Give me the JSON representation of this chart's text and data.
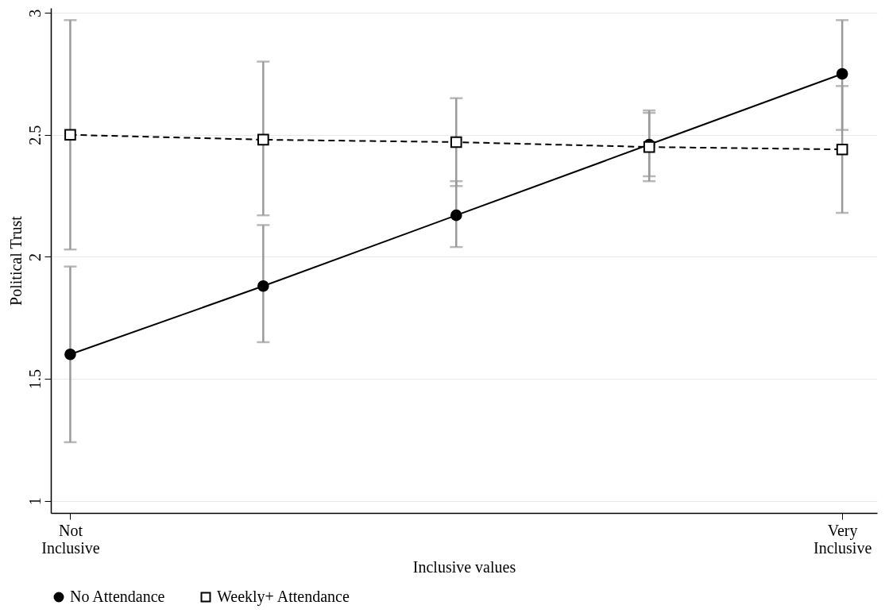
{
  "chart_data": {
    "type": "line",
    "xlabel": "Inclusive values",
    "ylabel": "Political Trust",
    "categories": [
      "Not Inclusive",
      null,
      null,
      null,
      "Very Inclusive"
    ],
    "ylim": [
      0.95,
      3.02
    ],
    "yticks": [
      {
        "value": 1,
        "label": "1"
      },
      1.5,
      {
        "value": 2,
        "label": "2"
      },
      2.5,
      {
        "value": 3,
        "label": "3"
      }
    ],
    "grid": "y",
    "legend": "bottom",
    "series": [
      {
        "name": "No Attendance",
        "color": "#000000",
        "marker": "circle",
        "line_style": "solid",
        "values": [
          1.6,
          1.88,
          2.17,
          2.46,
          2.75
        ],
        "errors": [
          [
            1.24,
            1.96
          ],
          [
            1.65,
            2.13
          ],
          [
            2.04,
            2.31
          ],
          [
            2.31,
            2.6
          ],
          [
            2.52,
            2.97
          ]
        ]
      },
      {
        "name": "Weekly+ Attendance",
        "color": "#000000",
        "marker": "square",
        "line_style": "dashed",
        "values": [
          2.5,
          2.48,
          2.47,
          2.45,
          2.44
        ],
        "errors": [
          [
            2.03,
            2.97
          ],
          [
            2.17,
            2.8
          ],
          [
            2.29,
            2.65
          ],
          [
            2.33,
            2.59
          ],
          [
            2.18,
            2.7
          ]
        ]
      }
    ]
  }
}
